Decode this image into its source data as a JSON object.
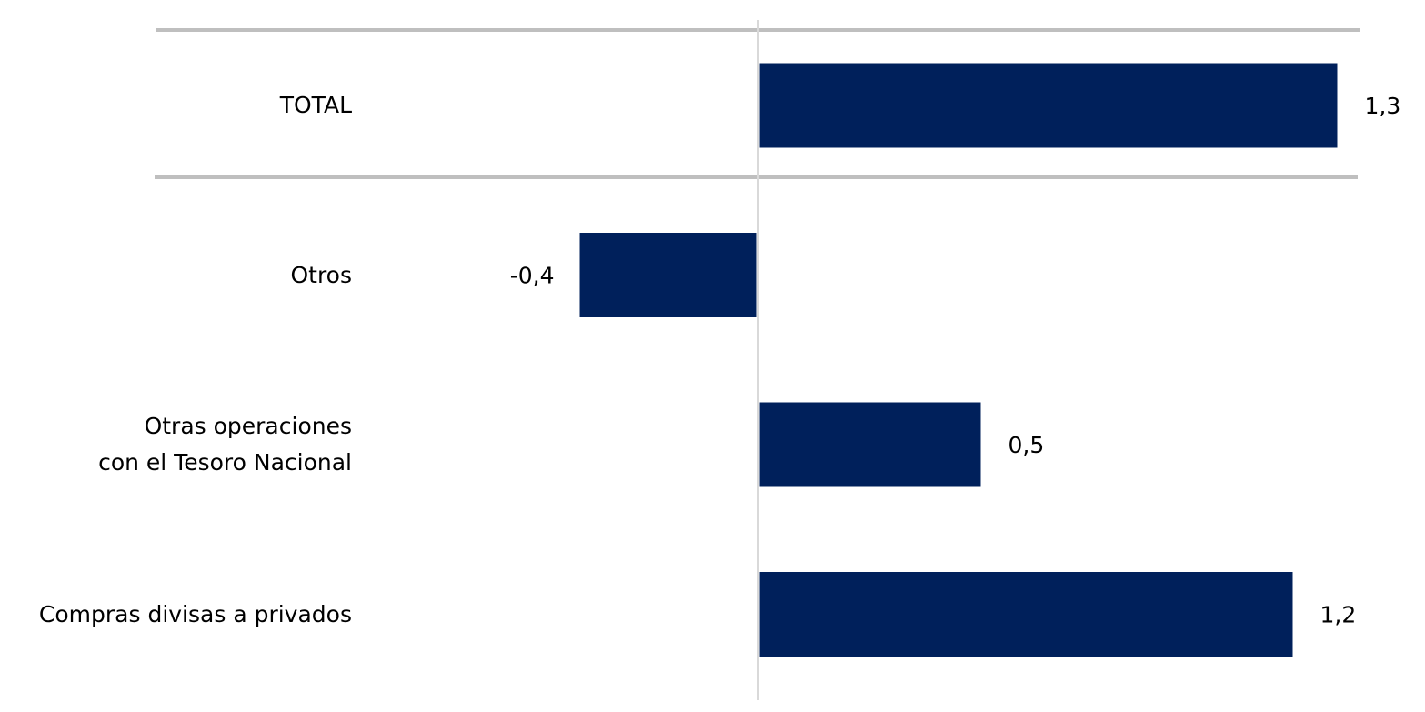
{
  "chart_data": {
    "type": "hbar",
    "categories": [
      "TOTAL",
      "Otros",
      "Otras operaciones con el Tesoro Nacional",
      "Compras divisas a privados"
    ],
    "values": [
      1.3,
      -0.4,
      0.5,
      1.2
    ],
    "value_labels": [
      "1,3",
      "-0,4",
      "0,5",
      "1,2"
    ],
    "color": "#00205b",
    "xlim": [
      -1.35,
      1.35
    ]
  }
}
